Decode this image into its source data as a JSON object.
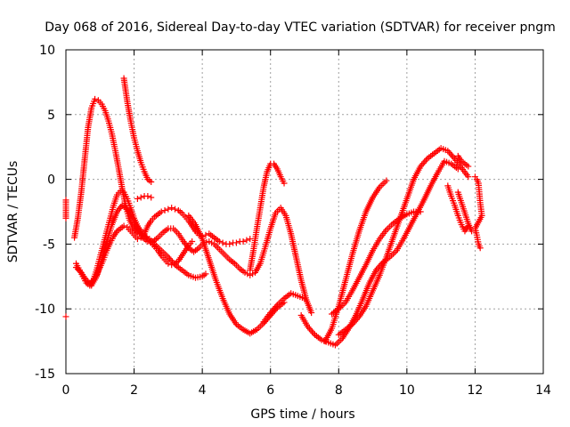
{
  "chart_data": {
    "type": "scatter",
    "title": "Day 068 of 2016, Sidereal Day-to-day VTEC variation (SDTVAR) for receiver pngm",
    "xlabel": "GPS time / hours",
    "ylabel": "SDTVAR / TECUs",
    "xlim": [
      0,
      14
    ],
    "ylim": [
      -15,
      10
    ],
    "xticks": [
      0,
      2,
      4,
      6,
      8,
      10,
      12,
      14
    ],
    "yticks": [
      -15,
      -10,
      -5,
      0,
      5,
      10
    ],
    "grid": true,
    "marker": "+",
    "color": "#ff0000",
    "series": [
      {
        "x": [
          0.25,
          0.35,
          0.45,
          0.55,
          0.65,
          0.75,
          0.85,
          0.95,
          1.05,
          1.15,
          1.25,
          1.35,
          1.45,
          1.55,
          1.65,
          1.75,
          1.85,
          1.95,
          2.05,
          2.15,
          2.3,
          2.45,
          2.6,
          2.8,
          3.0,
          3.2,
          3.4,
          3.6,
          3.8,
          4.0,
          4.1
        ],
        "y": [
          -4.5,
          -3.0,
          -1.0,
          1.5,
          4.0,
          5.5,
          6.2,
          6.1,
          5.8,
          5.3,
          4.5,
          3.5,
          2.2,
          0.8,
          -0.7,
          -2.0,
          -3.0,
          -3.6,
          -4.0,
          -4.2,
          -4.4,
          -4.6,
          -5.0,
          -5.5,
          -6.0,
          -6.6,
          -7.0,
          -7.4,
          -7.6,
          -7.5,
          -7.3
        ]
      },
      {
        "x": [
          0.3,
          0.4,
          0.5,
          0.6,
          0.7,
          0.8,
          0.9,
          1.0,
          1.1,
          1.2,
          1.3,
          1.4,
          1.5,
          1.6,
          1.7,
          1.8,
          1.9,
          2.0,
          2.1,
          2.2,
          2.3,
          2.4,
          2.5,
          2.6,
          2.7,
          2.8,
          2.9,
          3.0,
          3.1,
          3.2,
          3.3,
          3.4,
          3.5,
          3.6,
          3.7
        ],
        "y": [
          -6.5,
          -7.0,
          -7.5,
          -8.0,
          -8.2,
          -7.8,
          -7.0,
          -6.0,
          -5.0,
          -4.0,
          -3.0,
          -2.0,
          -1.2,
          -0.9,
          -1.0,
          -1.5,
          -2.2,
          -3.0,
          -3.6,
          -4.0,
          -4.3,
          -4.6,
          -4.9,
          -5.2,
          -5.5,
          -5.9,
          -6.2,
          -6.5,
          -6.6,
          -6.5,
          -6.3,
          -5.9,
          -5.5,
          -5.1,
          -4.8
        ]
      },
      {
        "x": [
          0.3,
          0.45,
          0.6,
          0.75,
          0.9,
          1.05,
          1.2,
          1.35,
          1.5,
          1.65,
          1.8,
          1.95,
          2.1,
          2.25,
          2.4,
          2.55,
          2.7,
          2.85,
          3.0,
          3.15,
          3.3,
          3.45,
          3.6,
          3.75,
          3.9,
          4.05,
          4.2,
          4.35,
          4.5,
          4.65,
          4.8,
          4.95,
          5.1,
          5.25,
          5.4,
          5.55,
          5.7,
          5.85,
          6.0,
          6.15,
          6.3,
          6.45,
          6.6,
          6.75,
          6.9,
          7.05,
          7.2
        ],
        "y": [
          -6.8,
          -7.2,
          -7.8,
          -8.2,
          -7.5,
          -6.2,
          -4.8,
          -3.5,
          -2.5,
          -2.0,
          -2.3,
          -3.0,
          -3.8,
          -4.5,
          -4.8,
          -4.8,
          -4.5,
          -4.1,
          -3.8,
          -3.8,
          -4.2,
          -4.8,
          -5.3,
          -5.6,
          -5.3,
          -4.9,
          -4.8,
          -5.0,
          -5.4,
          -5.8,
          -6.2,
          -6.5,
          -6.9,
          -7.2,
          -7.4,
          -7.2,
          -6.5,
          -5.2,
          -3.8,
          -2.6,
          -2.2,
          -2.8,
          -4.2,
          -6.0,
          -7.8,
          -9.3,
          -10.3
        ]
      },
      {
        "x": [
          0.5,
          0.6,
          0.7,
          0.8,
          0.9,
          1.0,
          1.1,
          1.2,
          1.3,
          1.4,
          1.5,
          1.6,
          1.7,
          1.8,
          1.9,
          2.0,
          2.1,
          2.2,
          2.3,
          2.4,
          2.5,
          2.6,
          2.7,
          2.8,
          2.9,
          3.0,
          3.1,
          3.2,
          3.3,
          3.4,
          3.5,
          3.6,
          3.7,
          3.8,
          3.9,
          4.0,
          4.1,
          4.2,
          4.3,
          4.4,
          4.5,
          4.6,
          4.7,
          4.8,
          4.9,
          5.0,
          5.1,
          5.2,
          5.3,
          5.4
        ],
        "y": [
          -7.5,
          -7.8,
          -8.0,
          -7.8,
          -7.4,
          -6.8,
          -6.2,
          -5.5,
          -4.9,
          -4.4,
          -4.0,
          -3.8,
          -3.6,
          -3.7,
          -4.0,
          -4.3,
          -4.6,
          -4.5,
          -4.2,
          -3.6,
          -3.2,
          -2.9,
          -2.7,
          -2.5,
          -2.4,
          -2.3,
          -2.2,
          -2.3,
          -2.4,
          -2.6,
          -2.9,
          -3.2,
          -3.6,
          -4.0,
          -4.3,
          -4.4,
          -4.3,
          -4.2,
          -4.4,
          -4.6,
          -4.8,
          -4.9,
          -5.0,
          -5.0,
          -4.9,
          -4.9,
          -4.8,
          -4.8,
          -4.7,
          -4.6
        ]
      },
      {
        "x": [
          1.7,
          1.8,
          1.9,
          2.0,
          2.1,
          2.2,
          2.3,
          2.4,
          2.5
        ],
        "y": [
          7.8,
          6.0,
          4.5,
          3.2,
          2.2,
          1.3,
          0.6,
          0.0,
          -0.2
        ]
      },
      {
        "x": [
          2.1,
          2.2,
          2.3,
          2.4,
          2.5
        ],
        "y": [
          -1.5,
          -1.4,
          -1.3,
          -1.3,
          -1.4
        ]
      },
      {
        "x": [
          3.6,
          3.8,
          4.0,
          4.2,
          4.4,
          4.6,
          4.8,
          5.0,
          5.2,
          5.4,
          5.6,
          5.8,
          6.0,
          6.2,
          6.4
        ],
        "y": [
          -2.8,
          -3.5,
          -4.6,
          -6.2,
          -7.8,
          -9.2,
          -10.4,
          -11.2,
          -11.6,
          -11.9,
          -11.6,
          -11.1,
          -10.5,
          -9.9,
          -9.5
        ]
      },
      {
        "x": [
          5.4,
          5.5,
          5.6,
          5.7,
          5.8,
          5.9,
          6.0,
          6.1,
          6.2,
          6.3,
          6.4
        ],
        "y": [
          -7.0,
          -5.5,
          -3.8,
          -2.2,
          -0.6,
          0.6,
          1.2,
          1.2,
          0.8,
          0.2,
          -0.3
        ]
      },
      {
        "x": [
          5.8,
          6.0,
          6.2,
          6.4,
          6.6,
          6.8,
          7.0
        ],
        "y": [
          -11.0,
          -10.3,
          -9.7,
          -9.2,
          -8.8,
          -9.0,
          -9.2
        ]
      },
      {
        "x": [
          6.9,
          7.1,
          7.3,
          7.5,
          7.7,
          7.9,
          8.1,
          8.3,
          8.5,
          8.7,
          8.9,
          9.1,
          9.3,
          9.5,
          9.7,
          9.9,
          10.1,
          10.3,
          10.5,
          10.7,
          10.9,
          11.1,
          11.3,
          11.5
        ],
        "y": [
          -10.5,
          -11.4,
          -12.0,
          -12.4,
          -12.6,
          -12.8,
          -12.3,
          -11.5,
          -10.5,
          -9.3,
          -8.0,
          -7.0,
          -6.4,
          -6.0,
          -5.5,
          -4.6,
          -3.6,
          -2.6,
          -1.6,
          -0.5,
          0.5,
          1.4,
          1.2,
          0.8
        ]
      },
      {
        "x": [
          7.6,
          7.8,
          8.0,
          8.2,
          8.4,
          8.6,
          8.8,
          9.0,
          9.2,
          9.4
        ],
        "y": [
          -12.5,
          -11.5,
          -9.8,
          -7.8,
          -5.8,
          -4.0,
          -2.5,
          -1.4,
          -0.6,
          -0.1
        ]
      },
      {
        "x": [
          7.8,
          8.0,
          8.2,
          8.4,
          8.6,
          8.8,
          9.0,
          9.2,
          9.4,
          9.6,
          9.8,
          10.0,
          10.2,
          10.4
        ],
        "y": [
          -10.4,
          -10.0,
          -9.5,
          -8.6,
          -7.6,
          -6.6,
          -5.5,
          -4.6,
          -3.9,
          -3.4,
          -3.0,
          -2.7,
          -2.5,
          -2.5
        ]
      },
      {
        "x": [
          8.0,
          8.2,
          8.4,
          8.6,
          8.8,
          9.0,
          9.2,
          9.4,
          9.6,
          9.8,
          10.0,
          10.2,
          10.4,
          10.6,
          10.8,
          11.0,
          11.2,
          11.4,
          11.6,
          11.8
        ],
        "y": [
          -12.0,
          -11.6,
          -11.2,
          -10.6,
          -9.8,
          -8.6,
          -7.4,
          -6.0,
          -4.5,
          -3.0,
          -1.5,
          0.0,
          1.0,
          1.6,
          2.0,
          2.4,
          2.2,
          1.6,
          0.9,
          0.2
        ]
      },
      {
        "x": [
          11.2,
          11.3,
          11.4,
          11.5,
          11.6,
          11.7,
          11.8
        ],
        "y": [
          -0.5,
          -1.3,
          -2.0,
          -2.8,
          -3.5,
          -4.0,
          -3.6
        ]
      },
      {
        "x": [
          11.5,
          11.6,
          11.7,
          11.8,
          11.9
        ],
        "y": [
          -1.0,
          -1.8,
          -2.6,
          -3.4,
          -4.0
        ]
      },
      {
        "x": [
          11.5,
          11.6,
          11.7,
          11.8
        ],
        "y": [
          1.8,
          1.4,
          1.2,
          1.0
        ]
      },
      {
        "x": [
          12.0,
          12.05,
          12.1,
          12.15,
          12.2,
          12.0,
          12.05,
          12.1,
          12.15
        ],
        "y": [
          0.2,
          0.0,
          -0.3,
          -1.8,
          -2.8,
          -3.8,
          -4.3,
          -5.0,
          -5.3
        ]
      },
      {
        "x": [
          0.0,
          0.0,
          0.0
        ],
        "y": [
          -1.6,
          -3.0,
          -10.6
        ]
      }
    ]
  }
}
